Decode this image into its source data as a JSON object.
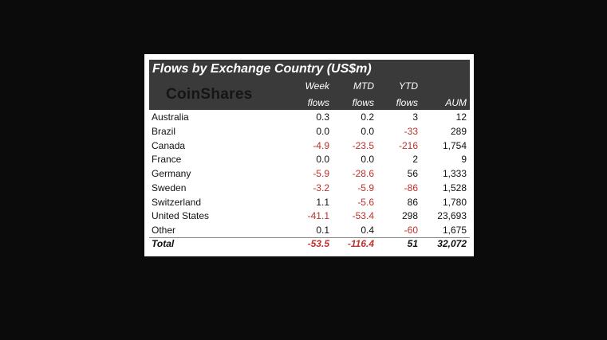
{
  "header": {
    "title": "Flows by Exchange Country (US$m)",
    "logo": "CoinShares"
  },
  "table": {
    "columns": [
      [
        "Week",
        "flows"
      ],
      [
        "MTD",
        "flows"
      ],
      [
        "YTD",
        "flows"
      ],
      [
        "AUM"
      ]
    ],
    "rows": [
      [
        "Australia",
        "0.3",
        "0.2",
        "3",
        "12"
      ],
      [
        "Brazil",
        "0.0",
        "0.0",
        "-33",
        "289"
      ],
      [
        "Canada",
        "-4.9",
        "-23.5",
        "-216",
        "1,754"
      ],
      [
        "France",
        "0.0",
        "0.0",
        "2",
        "9"
      ],
      [
        "Germany",
        "-5.9",
        "-28.6",
        "56",
        "1,333"
      ],
      [
        "Sweden",
        "-3.2",
        "-5.9",
        "-86",
        "1,528"
      ],
      [
        "Switzerland",
        "1.1",
        "-5.6",
        "86",
        "1,780"
      ],
      [
        "United States",
        "-41.1",
        "-53.4",
        "298",
        "23,693"
      ],
      [
        "Other",
        "0.1",
        "0.4",
        "-60",
        "1,675"
      ]
    ],
    "total": [
      "Total",
      "-53.5",
      "-116.4",
      "51",
      "32,072"
    ]
  }
}
